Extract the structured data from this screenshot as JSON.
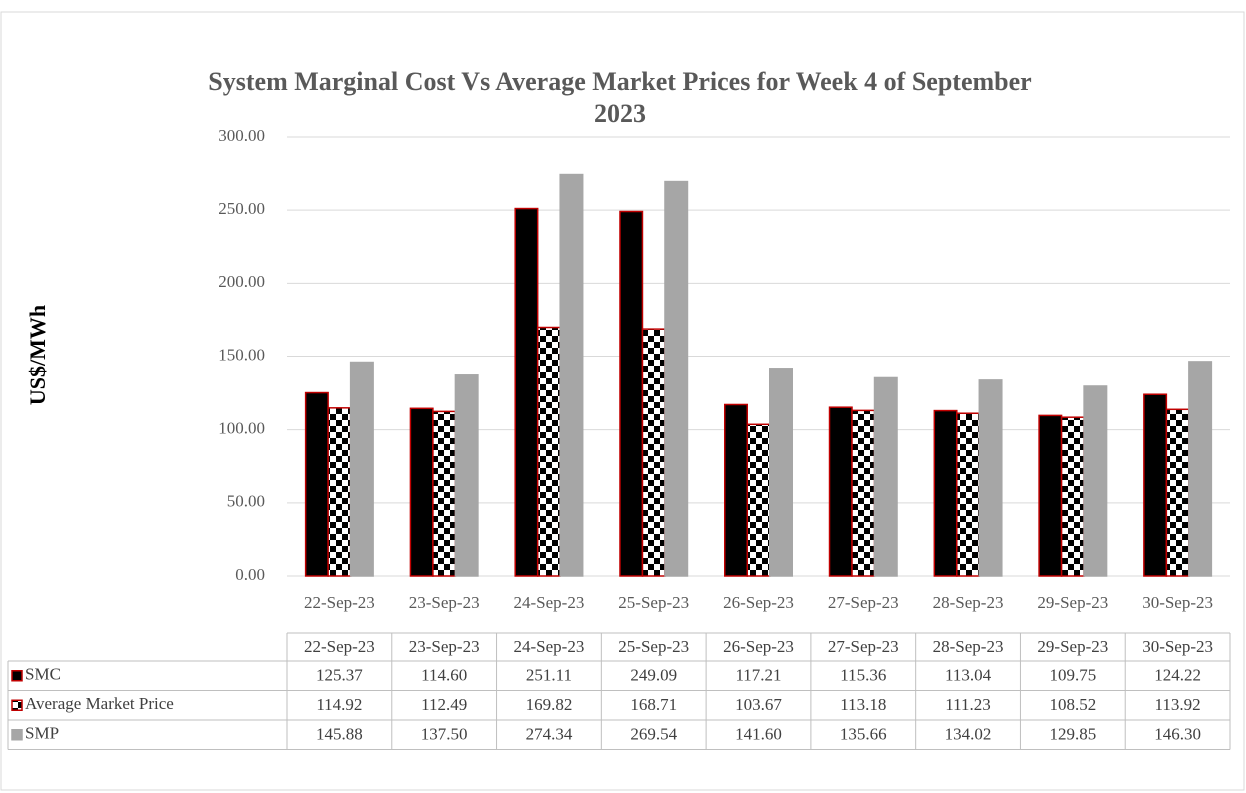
{
  "chart_data": {
    "type": "bar",
    "title": "System Marginal Cost Vs Average Market Prices for Week 4 of September 2023",
    "ylabel": "US$/MWh",
    "categories": [
      "22-Sep-23",
      "23-Sep-23",
      "24-Sep-23",
      "25-Sep-23",
      "26-Sep-23",
      "27-Sep-23",
      "28-Sep-23",
      "29-Sep-23",
      "30-Sep-23"
    ],
    "series": [
      {
        "name": "SMC",
        "color": "#000000",
        "edgecolor": "#c00000",
        "pattern": "solid",
        "values": [
          125.37,
          114.6,
          251.11,
          249.09,
          117.21,
          115.36,
          113.04,
          109.75,
          124.22
        ],
        "value_labels": [
          "125.37",
          "114.60",
          "251.11",
          "249.09",
          "117.21",
          "115.36",
          "113.04",
          "109.75",
          "124.22"
        ]
      },
      {
        "name": "Average Market Price",
        "color": "#000000",
        "edgecolor": "#c00000",
        "pattern": "checker",
        "values": [
          114.92,
          112.49,
          169.82,
          168.71,
          103.67,
          113.18,
          111.23,
          108.52,
          113.92
        ],
        "value_labels": [
          "114.92",
          "112.49",
          "169.82",
          "168.71",
          "103.67",
          "113.18",
          "111.23",
          "108.52",
          "113.92"
        ]
      },
      {
        "name": "SMP",
        "color": "#a6a6a6",
        "edgecolor": "#a6a6a6",
        "pattern": "solid",
        "values": [
          145.88,
          137.5,
          274.34,
          269.54,
          141.6,
          135.66,
          134.02,
          129.85,
          146.3
        ],
        "value_labels": [
          "145.88",
          "137.50",
          "274.34",
          "269.54",
          "141.60",
          "135.66",
          "134.02",
          "129.85",
          "146.30"
        ]
      }
    ],
    "ylim": [
      0,
      300
    ],
    "yticks": [
      {
        "value": 0,
        "label": "0.00"
      },
      {
        "value": 50,
        "label": "50.00"
      },
      {
        "value": 100,
        "label": "100.00"
      },
      {
        "value": 150,
        "label": "150.00"
      },
      {
        "value": 200,
        "label": "200.00"
      },
      {
        "value": 250,
        "label": "250.00"
      },
      {
        "value": 300,
        "label": "300.00"
      }
    ],
    "grid": true,
    "data_table": true
  }
}
